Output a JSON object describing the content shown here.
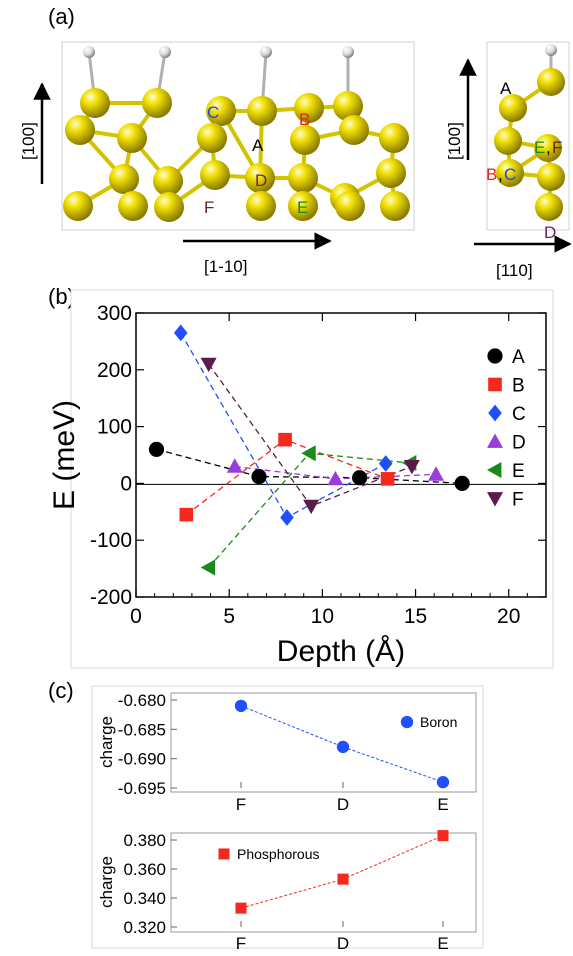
{
  "panels": {
    "a": "(a)",
    "b": "(b)",
    "c": "(c)"
  },
  "panel_a": {
    "left_view": {
      "vertical_axis": "[100]",
      "horizontal_axis": "[1-10]",
      "site_labels": [
        {
          "text": "C",
          "color": "#1f3fff"
        },
        {
          "text": "A",
          "color": "#000000"
        },
        {
          "text": "B",
          "color": "#e8231a"
        },
        {
          "text": "D",
          "color": "#6b1f6e"
        },
        {
          "text": "F",
          "color": "#6b1f1f"
        },
        {
          "text": "E",
          "color": "#1a8a1a"
        }
      ]
    },
    "right_view": {
      "vertical_axis": "[100]",
      "horizontal_axis": "[110]",
      "site_labels": [
        {
          "text": "A",
          "color": "#000000"
        },
        {
          "text": "E",
          "color": "#1a8a1a"
        },
        {
          "text": ",",
          "color": "#000000"
        },
        {
          "text": "F",
          "color": "#6b1f1f"
        },
        {
          "text": "B",
          "color": "#e8231a"
        },
        {
          "text": ",",
          "color": "#000000"
        },
        {
          "text": "C",
          "color": "#1f3fff"
        },
        {
          "text": "D",
          "color": "#6b1f6e"
        }
      ]
    },
    "atom_color": "#e0d000",
    "hydrogen_color": "#e8e8e8"
  },
  "chart_data": [
    {
      "type": "scatter",
      "xlabel": "Depth (Å)",
      "ylabel": "E (meV)",
      "xlim": [
        0,
        22
      ],
      "ylim": [
        -200,
        300
      ],
      "xticks": [
        "0",
        "5",
        "10",
        "15",
        "20"
      ],
      "yticks": [
        "-200",
        "-100",
        "0",
        "100",
        "200",
        "300"
      ],
      "zero_line": true,
      "legend_position": "right",
      "series": [
        {
          "name": "A",
          "marker": "circle",
          "color": "#000000",
          "x": [
            1.1,
            6.6,
            12.0,
            17.5
          ],
          "y": [
            60,
            12,
            10,
            0
          ]
        },
        {
          "name": "B",
          "marker": "square",
          "color": "#f5281e",
          "x": [
            2.7,
            8.0,
            13.5
          ],
          "y": [
            -55,
            77,
            8
          ]
        },
        {
          "name": "C",
          "marker": "diamond",
          "color": "#1f4fff",
          "x": [
            2.4,
            8.1,
            13.4
          ],
          "y": [
            265,
            -60,
            35
          ]
        },
        {
          "name": "D",
          "marker": "triangle-up",
          "color": "#9a3cd8",
          "x": [
            5.3,
            10.7,
            16.1
          ],
          "y": [
            30,
            8,
            16
          ]
        },
        {
          "name": "E",
          "marker": "triangle-left",
          "color": "#1a8a1a",
          "x": [
            3.9,
            9.3,
            14.7
          ],
          "y": [
            -148,
            53,
            36
          ]
        },
        {
          "name": "F",
          "marker": "triangle-down",
          "color": "#5a1a4a",
          "x": [
            3.9,
            9.4,
            14.8
          ],
          "y": [
            210,
            -40,
            30
          ]
        }
      ]
    },
    {
      "type": "line",
      "ylabel": "charge",
      "categories": [
        "F",
        "D",
        "E"
      ],
      "ylim": [
        -0.695,
        -0.68
      ],
      "yticks": [
        "-0.680",
        "-0.685",
        "-0.690",
        "-0.695"
      ],
      "legend_position": "top-right",
      "series": [
        {
          "name": "Boron",
          "marker": "circle",
          "color": "#1f4fff",
          "values": [
            -0.681,
            -0.688,
            -0.694
          ]
        }
      ]
    },
    {
      "type": "line",
      "ylabel": "charge",
      "categories": [
        "F",
        "D",
        "E"
      ],
      "ylim": [
        0.32,
        0.38
      ],
      "yticks": [
        "0.380",
        "0.360",
        "0.340",
        "0.320"
      ],
      "legend_position": "top-left",
      "series": [
        {
          "name": "Phosphorous",
          "marker": "square",
          "color": "#f5281e",
          "values": [
            0.333,
            0.353,
            0.383
          ]
        }
      ]
    }
  ]
}
